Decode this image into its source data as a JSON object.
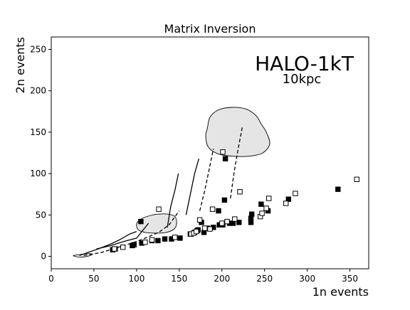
{
  "chart_data": {
    "type": "scatter",
    "title": "Matrix Inversion",
    "xlabel": "1n events",
    "ylabel": "2n events",
    "xlim": [
      0,
      372
    ],
    "ylim": [
      -15,
      265
    ],
    "xticks": [
      0,
      50,
      100,
      150,
      200,
      250,
      300,
      350
    ],
    "yticks": [
      0,
      50,
      100,
      150,
      200,
      250
    ],
    "grid": false,
    "annotations": [
      {
        "text": "HALO-1kT",
        "role": "main-label"
      },
      {
        "text": "10kpc",
        "role": "sub-label"
      }
    ],
    "series": [
      {
        "marker": "filled-square",
        "points": [
          [
            72,
            8
          ],
          [
            75,
            9
          ],
          [
            95,
            13
          ],
          [
            97,
            14
          ],
          [
            105,
            42
          ],
          [
            106,
            16
          ],
          [
            118,
            19
          ],
          [
            125,
            19
          ],
          [
            133,
            21
          ],
          [
            141,
            21
          ],
          [
            151,
            22
          ],
          [
            163,
            27
          ],
          [
            168,
            29
          ],
          [
            171,
            31
          ],
          [
            172,
            32
          ],
          [
            176,
            41
          ],
          [
            179,
            29
          ],
          [
            183,
            34
          ],
          [
            190,
            35
          ],
          [
            196,
            55
          ],
          [
            197,
            38
          ],
          [
            199,
            38
          ],
          [
            201,
            38
          ],
          [
            203,
            68
          ],
          [
            204,
            118
          ],
          [
            209,
            40
          ],
          [
            213,
            40
          ],
          [
            220,
            41
          ],
          [
            234,
            41
          ],
          [
            234,
            46
          ],
          [
            235,
            51
          ],
          [
            246,
            63
          ],
          [
            254,
            55
          ],
          [
            278,
            69
          ],
          [
            336,
            81
          ]
        ]
      },
      {
        "marker": "open-square",
        "points": [
          [
            74,
            9
          ],
          [
            84,
            11
          ],
          [
            110,
            17
          ],
          [
            118,
            20
          ],
          [
            126,
            57
          ],
          [
            145,
            23
          ],
          [
            164,
            27
          ],
          [
            167,
            28
          ],
          [
            170,
            30
          ],
          [
            174,
            44
          ],
          [
            180,
            34
          ],
          [
            186,
            33
          ],
          [
            189,
            57
          ],
          [
            200,
            40
          ],
          [
            201,
            126
          ],
          [
            206,
            42
          ],
          [
            215,
            45
          ],
          [
            221,
            78
          ],
          [
            245,
            48
          ],
          [
            247,
            52
          ],
          [
            252,
            58
          ],
          [
            255,
            70
          ],
          [
            275,
            64
          ],
          [
            286,
            76
          ],
          [
            358,
            93
          ]
        ]
      }
    ],
    "regions": [
      {
        "name": "small-contour",
        "fill": "#e5e5e5",
        "outline": [
          [
            100,
            39
          ],
          [
            105,
            45
          ],
          [
            115,
            49
          ],
          [
            125,
            51
          ],
          [
            137,
            51
          ],
          [
            145,
            48
          ],
          [
            147,
            40
          ],
          [
            144,
            33
          ],
          [
            135,
            29
          ],
          [
            122,
            28
          ],
          [
            110,
            29
          ],
          [
            102,
            32
          ]
        ]
      },
      {
        "name": "large-contour",
        "fill": "#e5e5e5",
        "outline": [
          [
            183,
            155
          ],
          [
            186,
            168
          ],
          [
            196,
            177
          ],
          [
            212,
            180
          ],
          [
            228,
            178
          ],
          [
            240,
            170
          ],
          [
            246,
            160
          ],
          [
            252,
            150
          ],
          [
            256,
            136
          ],
          [
            248,
            125
          ],
          [
            232,
            121
          ],
          [
            212,
            121
          ],
          [
            195,
            124
          ],
          [
            184,
            132
          ],
          [
            181,
            145
          ]
        ]
      },
      {
        "name": "bottom-contour",
        "fill": "#ffffff",
        "outline": [
          [
            26,
            1
          ],
          [
            33,
            2
          ],
          [
            40,
            3
          ],
          [
            46,
            3
          ],
          [
            48,
            2
          ],
          [
            42,
            0
          ],
          [
            34,
            -1
          ],
          [
            28,
            0
          ]
        ]
      }
    ],
    "solid_lines": [
      [
        [
          33,
          1
        ],
        [
          55,
          9
        ],
        [
          70,
          15
        ],
        [
          80,
          20
        ],
        [
          92,
          27
        ],
        [
          100,
          30
        ]
      ],
      [
        [
          53,
          9
        ],
        [
          70,
          13
        ],
        [
          85,
          18
        ],
        [
          100,
          22
        ],
        [
          107,
          31
        ],
        [
          114,
          40
        ]
      ],
      [
        [
          136,
          35
        ],
        [
          140,
          60
        ],
        [
          145,
          80
        ],
        [
          149,
          100
        ]
      ],
      [
        [
          158,
          50
        ],
        [
          164,
          80
        ],
        [
          168,
          100
        ],
        [
          173,
          118
        ]
      ]
    ],
    "dashed_lines": [
      [
        [
          38,
          1
        ],
        [
          60,
          5
        ],
        [
          85,
          13
        ],
        [
          100,
          18
        ],
        [
          110,
          22
        ],
        [
          126,
          29
        ],
        [
          138,
          38
        ],
        [
          150,
          55
        ]
      ],
      [
        [
          174,
          55
        ],
        [
          180,
          80
        ],
        [
          186,
          110
        ],
        [
          190,
          130
        ]
      ],
      [
        [
          210,
          70
        ],
        [
          214,
          100
        ],
        [
          219,
          130
        ],
        [
          224,
          157
        ]
      ]
    ]
  }
}
